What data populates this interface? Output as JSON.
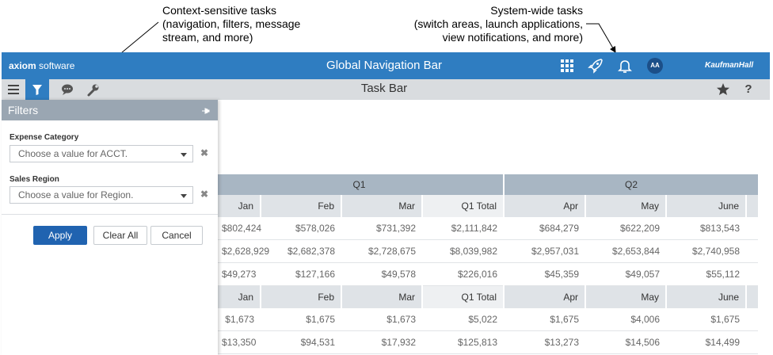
{
  "callouts": {
    "left": [
      "Context-sensitive tasks",
      "(navigation, filters, message",
      "stream, and more)"
    ],
    "right": [
      "System-wide tasks",
      "(switch areas, launch applications,",
      "view notifications, and more)"
    ]
  },
  "global_nav": {
    "brand_bold": "axiom",
    "brand_rest": " software",
    "title": "Global Navigation Bar",
    "avatar": "AA",
    "vendor_logo": "KaufmanHall",
    "color": "#2f7dc1"
  },
  "task_bar": {
    "title": "Task Bar",
    "icons": [
      "menu-icon",
      "filter-icon",
      "message-icon",
      "wrench-icon",
      "star-icon",
      "help-icon"
    ],
    "help_glyph": "?"
  },
  "filters": {
    "title": "Filters",
    "fields": [
      {
        "label": "Expense Category",
        "placeholder": "Choose a value for ACCT."
      },
      {
        "label": "Sales Region",
        "placeholder": "Choose a value for Region."
      }
    ],
    "apply_label": "Apply",
    "clear_label": "Clear All",
    "cancel_label": "Cancel"
  },
  "grid": {
    "quarters": [
      "Q1",
      "Q2"
    ],
    "month_headers": [
      "Jan",
      "Feb",
      "Mar",
      "Q1 Total",
      "Apr",
      "May",
      "June"
    ],
    "section1_rows": [
      [
        "$802,424",
        "$578,026",
        "$731,392",
        "$2,111,842",
        "$684,279",
        "$622,209",
        "$813,543"
      ],
      [
        "$2,628,929",
        "$2,682,378",
        "$2,728,675",
        "$8,039,982",
        "$2,957,031",
        "$2,653,844",
        "$2,740,958"
      ],
      [
        "$49,273",
        "$127,166",
        "$49,578",
        "$226,016",
        "$45,359",
        "$49,057",
        "$55,112"
      ]
    ],
    "section2_rows": [
      [
        "$1,673",
        "$1,675",
        "$1,673",
        "$5,022",
        "$1,675",
        "$4,006",
        "$1,675"
      ],
      [
        "$13,350",
        "$94,531",
        "$17,932",
        "$125,813",
        "$13,273",
        "$14,506",
        "$14,499"
      ]
    ]
  }
}
